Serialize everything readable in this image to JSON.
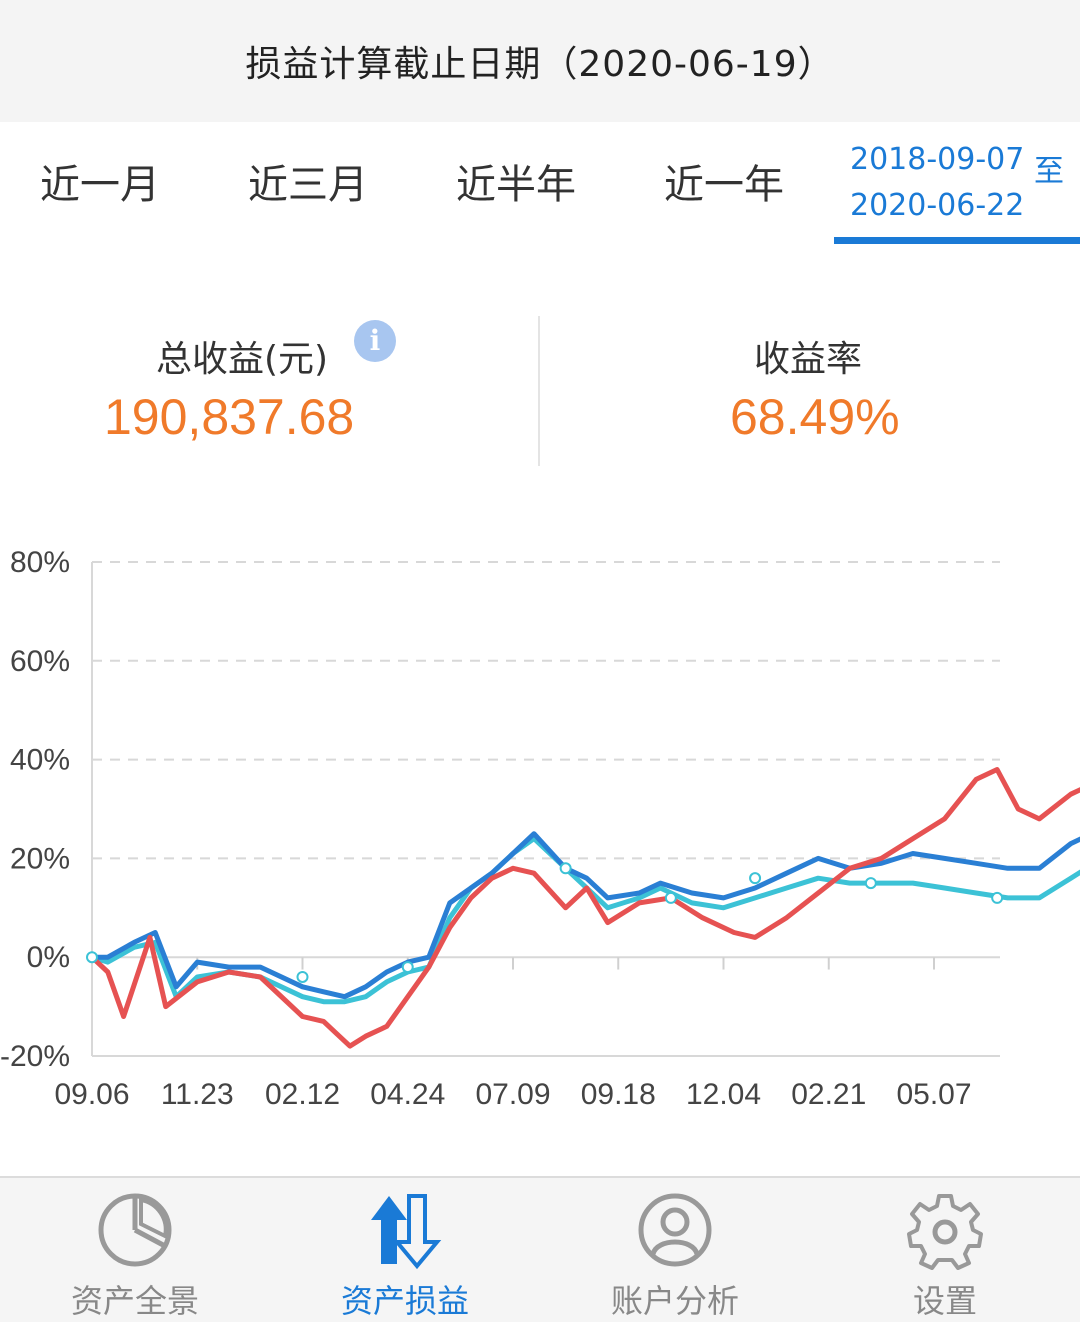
{
  "header": {
    "title": "损益计算截止日期（2020-06-19）"
  },
  "tabs": {
    "items": [
      "近一月",
      "近三月",
      "近半年",
      "近一年"
    ],
    "custom": {
      "start": "2018-09-07",
      "to": "至",
      "end": "2020-06-22"
    }
  },
  "stats": {
    "total_label": "总收益(元)",
    "total_value": "190,837.68",
    "rate_label": "收益率",
    "rate_value": "68.49%",
    "info_icon": "i"
  },
  "colors": {
    "accent": "#1a7ad6",
    "value": "#f07a2a",
    "red": "#e65252",
    "blue": "#2a7fd4",
    "cyan": "#3cc2d6"
  },
  "chart_data": {
    "type": "line",
    "y_ticks": [
      "80%",
      "60%",
      "40%",
      "20%",
      "0%",
      "-20%"
    ],
    "x_ticks": [
      "09.06",
      "11.23",
      "02.12",
      "04.24",
      "07.09",
      "09.18",
      "12.04",
      "02.21",
      "05.07"
    ],
    "ylim": [
      -20,
      80
    ],
    "grid": true,
    "series": [
      {
        "color": "#e65252",
        "points": [
          [
            0,
            0
          ],
          [
            0.15,
            -3
          ],
          [
            0.3,
            -12
          ],
          [
            0.55,
            4
          ],
          [
            0.7,
            -10
          ],
          [
            1.0,
            -5
          ],
          [
            1.3,
            -3
          ],
          [
            1.6,
            -4
          ],
          [
            2.0,
            -12
          ],
          [
            2.2,
            -13
          ],
          [
            2.3,
            -15
          ],
          [
            2.45,
            -18
          ],
          [
            2.6,
            -16
          ],
          [
            2.8,
            -14
          ],
          [
            3.0,
            -8
          ],
          [
            3.1,
            -5
          ],
          [
            3.2,
            -2
          ],
          [
            3.4,
            6
          ],
          [
            3.6,
            12
          ],
          [
            3.8,
            16
          ],
          [
            4.0,
            18
          ],
          [
            4.2,
            17
          ],
          [
            4.5,
            10
          ],
          [
            4.7,
            14
          ],
          [
            4.9,
            7
          ],
          [
            5.2,
            11
          ],
          [
            5.5,
            12
          ],
          [
            5.8,
            8
          ],
          [
            6.1,
            5
          ],
          [
            6.3,
            4
          ],
          [
            6.6,
            8
          ],
          [
            6.9,
            13
          ],
          [
            7.2,
            18
          ],
          [
            7.5,
            20
          ],
          [
            7.8,
            24
          ],
          [
            8.1,
            28
          ],
          [
            8.4,
            36
          ],
          [
            8.6,
            38
          ],
          [
            8.8,
            30
          ],
          [
            9.0,
            28
          ],
          [
            9.3,
            33
          ],
          [
            9.6,
            36
          ],
          [
            9.8,
            35
          ],
          [
            10.0,
            40
          ],
          [
            10.2,
            49
          ],
          [
            10.45,
            32
          ],
          [
            10.75,
            31
          ],
          [
            10.9,
            33
          ],
          [
            11.1,
            17
          ],
          [
            11.3,
            19
          ],
          [
            11.6,
            29
          ],
          [
            11.8,
            35
          ],
          [
            12.2,
            37
          ],
          [
            12.5,
            39
          ],
          [
            12.8,
            43
          ],
          [
            13.0,
            40
          ],
          [
            13.3,
            55
          ],
          [
            13.55,
            74
          ]
        ]
      },
      {
        "color": "#2a7fd4",
        "points": [
          [
            0,
            0
          ],
          [
            0.15,
            0
          ],
          [
            0.4,
            3
          ],
          [
            0.6,
            5
          ],
          [
            0.8,
            -6
          ],
          [
            1.0,
            -1
          ],
          [
            1.3,
            -2
          ],
          [
            1.6,
            -2
          ],
          [
            2.0,
            -6
          ],
          [
            2.2,
            -7
          ],
          [
            2.4,
            -8
          ],
          [
            2.6,
            -6
          ],
          [
            2.8,
            -3
          ],
          [
            3.0,
            -1
          ],
          [
            3.2,
            0
          ],
          [
            3.4,
            11
          ],
          [
            3.6,
            14
          ],
          [
            3.8,
            17
          ],
          [
            4.0,
            21
          ],
          [
            4.2,
            25
          ],
          [
            4.5,
            18
          ],
          [
            4.7,
            16
          ],
          [
            4.9,
            12
          ],
          [
            5.2,
            13
          ],
          [
            5.4,
            15
          ],
          [
            5.7,
            13
          ],
          [
            6.0,
            12
          ],
          [
            6.3,
            14
          ],
          [
            6.6,
            17
          ],
          [
            6.9,
            20
          ],
          [
            7.2,
            18
          ],
          [
            7.5,
            19
          ],
          [
            7.8,
            21
          ],
          [
            8.1,
            20
          ],
          [
            8.4,
            19
          ],
          [
            8.7,
            18
          ],
          [
            9.0,
            18
          ],
          [
            9.3,
            23
          ],
          [
            9.6,
            26
          ],
          [
            9.9,
            28
          ],
          [
            10.1,
            27
          ],
          [
            10.3,
            18
          ],
          [
            10.5,
            23
          ],
          [
            10.7,
            26
          ],
          [
            10.9,
            31
          ],
          [
            11.1,
            15
          ],
          [
            11.3,
            12
          ],
          [
            11.6,
            16
          ],
          [
            12.0,
            18
          ],
          [
            12.3,
            18
          ],
          [
            12.6,
            19
          ],
          [
            12.9,
            20
          ],
          [
            13.2,
            21
          ],
          [
            13.55,
            25
          ]
        ]
      },
      {
        "color": "#3cc2d6",
        "points": [
          [
            0,
            0
          ],
          [
            0.15,
            -1
          ],
          [
            0.4,
            2
          ],
          [
            0.6,
            3
          ],
          [
            0.8,
            -8
          ],
          [
            1.0,
            -4
          ],
          [
            1.3,
            -3
          ],
          [
            1.6,
            -4
          ],
          [
            2.0,
            -8
          ],
          [
            2.2,
            -9
          ],
          [
            2.4,
            -9
          ],
          [
            2.6,
            -8
          ],
          [
            2.8,
            -5
          ],
          [
            3.0,
            -3
          ],
          [
            3.2,
            -2
          ],
          [
            3.4,
            8
          ],
          [
            3.6,
            14
          ],
          [
            3.8,
            17
          ],
          [
            4.0,
            21
          ],
          [
            4.2,
            24
          ],
          [
            4.5,
            18
          ],
          [
            4.7,
            14
          ],
          [
            4.9,
            10
          ],
          [
            5.2,
            12
          ],
          [
            5.4,
            14
          ],
          [
            5.7,
            11
          ],
          [
            6.0,
            10
          ],
          [
            6.3,
            12
          ],
          [
            6.6,
            14
          ],
          [
            6.9,
            16
          ],
          [
            7.2,
            15
          ],
          [
            7.5,
            15
          ],
          [
            7.8,
            15
          ],
          [
            8.1,
            14
          ],
          [
            8.4,
            13
          ],
          [
            8.7,
            12
          ],
          [
            9.0,
            12
          ],
          [
            9.3,
            16
          ],
          [
            9.6,
            20
          ],
          [
            9.9,
            22
          ],
          [
            10.1,
            21
          ],
          [
            10.3,
            13
          ],
          [
            10.5,
            20
          ],
          [
            10.7,
            25
          ],
          [
            10.9,
            30
          ],
          [
            11.1,
            14
          ],
          [
            11.3,
            11
          ],
          [
            11.6,
            15
          ],
          [
            12.0,
            16
          ],
          [
            12.3,
            17
          ],
          [
            12.6,
            18
          ],
          [
            12.9,
            19
          ],
          [
            13.2,
            21
          ],
          [
            13.55,
            24
          ]
        ]
      }
    ]
  },
  "nav": {
    "items": [
      {
        "label": "资产全景",
        "icon": "pie-chart-icon"
      },
      {
        "label": "资产损益",
        "icon": "up-down-arrows-icon"
      },
      {
        "label": "账户分析",
        "icon": "user-circle-icon"
      },
      {
        "label": "设置",
        "icon": "gear-icon"
      }
    ]
  }
}
